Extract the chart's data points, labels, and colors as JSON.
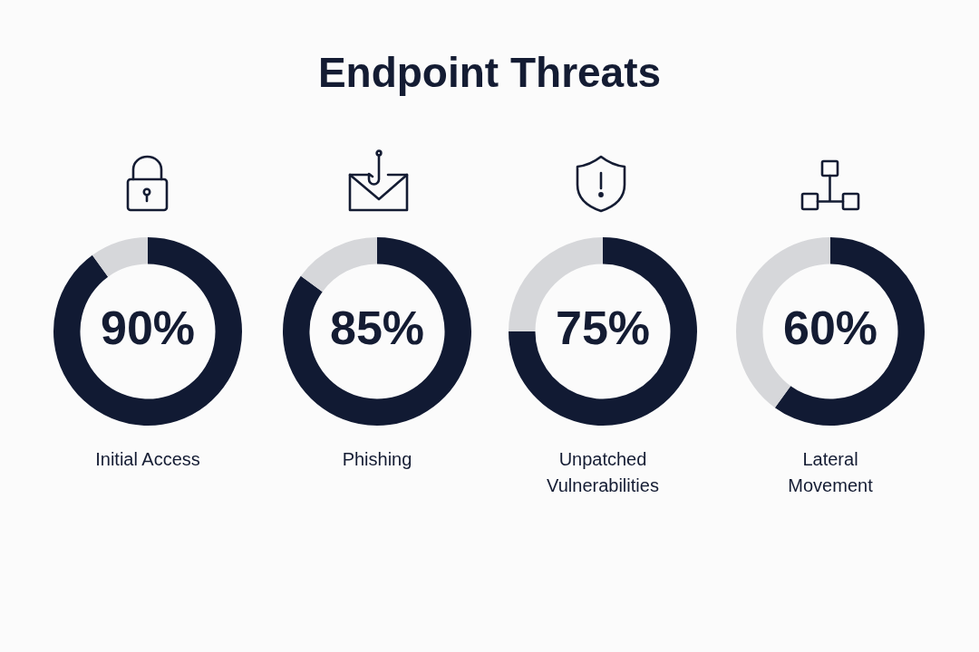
{
  "chart_data": [
    {
      "type": "donut",
      "title": "Endpoint Threats",
      "categories": [
        "Initial Access",
        null
      ],
      "values": [
        90,
        10
      ],
      "colors": [
        "#111a33",
        "#d6d7da"
      ],
      "value_labels": [
        "90%",
        null
      ]
    },
    {
      "type": "donut",
      "categories": [
        "Phishing",
        null
      ],
      "values": [
        85,
        15
      ],
      "colors": [
        "#111a33",
        "#d6d7da"
      ],
      "value_labels": [
        "85%",
        null
      ]
    },
    {
      "type": "donut",
      "categories": [
        "Unpatched Vulnerabilities",
        null
      ],
      "values": [
        75,
        25
      ],
      "colors": [
        "#111a33",
        "#d6d7da"
      ],
      "value_labels": [
        "75%",
        null
      ]
    },
    {
      "type": "donut",
      "categories": [
        "Lateral Movement",
        null
      ],
      "values": [
        60,
        40
      ],
      "colors": [
        "#111a33",
        "#d6d7da"
      ],
      "value_labels": [
        "60%",
        null
      ]
    }
  ]
}
